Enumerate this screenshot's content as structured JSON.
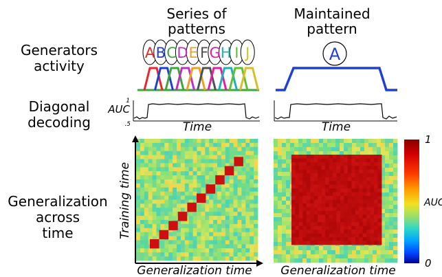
{
  "columns": {
    "left_title_line1": "Series of",
    "left_title_line2": "patterns",
    "right_title_line1": "Maintained",
    "right_title_line2": "pattern"
  },
  "rows": {
    "generators_line1": "Generators",
    "generators_line2": "activity",
    "diagonal_line1": "Diagonal",
    "diagonal_line2": "decoding",
    "gat_line1": "Generalization",
    "gat_line2": "across",
    "gat_line3": "time"
  },
  "letters": [
    "A",
    "B",
    "C",
    "D",
    "E",
    "F",
    "G",
    "H",
    "I",
    "J"
  ],
  "letter_colors": [
    "#e8262b",
    "#1f3fd6",
    "#3aa83a",
    "#c030c0",
    "#f0a020",
    "#505050",
    "#e020a0",
    "#20b0b0",
    "#60c030",
    "#d8c020"
  ],
  "maintained_letter": "A",
  "maintained_color": "#1f3fd6",
  "decoding": {
    "ylabel": "AUC",
    "y_top_tick": "1",
    "y_bottom_tick": ".5",
    "xlabel_left": "Time",
    "xlabel_right": "Time"
  },
  "gat": {
    "ylabel": "Training time",
    "xlabel_left": "Generalization time",
    "xlabel_right": "Generalization time"
  },
  "colorbar": {
    "label": "AUC",
    "top": "1",
    "bottom": "0",
    "colors": [
      "#8b0000",
      "#d40000",
      "#ff3b00",
      "#ff9a00",
      "#f2e020",
      "#9be06a",
      "#2fd6c8",
      "#00a2ff",
      "#0042ff",
      "#00008f"
    ]
  }
}
